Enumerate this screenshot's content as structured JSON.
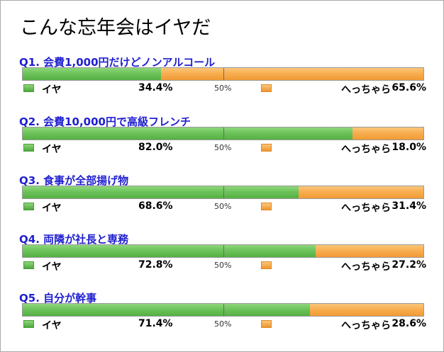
{
  "title": "こんな忘年会はイヤだ",
  "chart_data": {
    "type": "bar",
    "title": "こんな忘年会はイヤだ",
    "orientation": "horizontal-stacked-100",
    "midline_label": "50%",
    "series_names": [
      "イヤ",
      "へっちゃら"
    ],
    "colors": {
      "yes": "#6cc35a",
      "no": "#f8ae50",
      "question": "#1f1fd0"
    },
    "questions": [
      {
        "label": "Q1. 会費1,000円だけどノンアルコール",
        "yes": 34.4,
        "no": 65.6,
        "yes_text": "34.4%",
        "no_text": "65.6%"
      },
      {
        "label": "Q2. 会費10,000円で高級フレンチ",
        "yes": 82.0,
        "no": 18.0,
        "yes_text": "82.0%",
        "no_text": "18.0%"
      },
      {
        "label": "Q3. 食事が全部揚げ物",
        "yes": 68.6,
        "no": 31.4,
        "yes_text": "68.6%",
        "no_text": "31.4%"
      },
      {
        "label": "Q4. 両隣が社長と専務",
        "yes": 72.8,
        "no": 27.2,
        "yes_text": "72.8%",
        "no_text": "27.2%"
      },
      {
        "label": "Q5. 自分が幹事",
        "yes": 71.4,
        "no": 28.6,
        "yes_text": "71.4%",
        "no_text": "28.6%"
      }
    ]
  }
}
